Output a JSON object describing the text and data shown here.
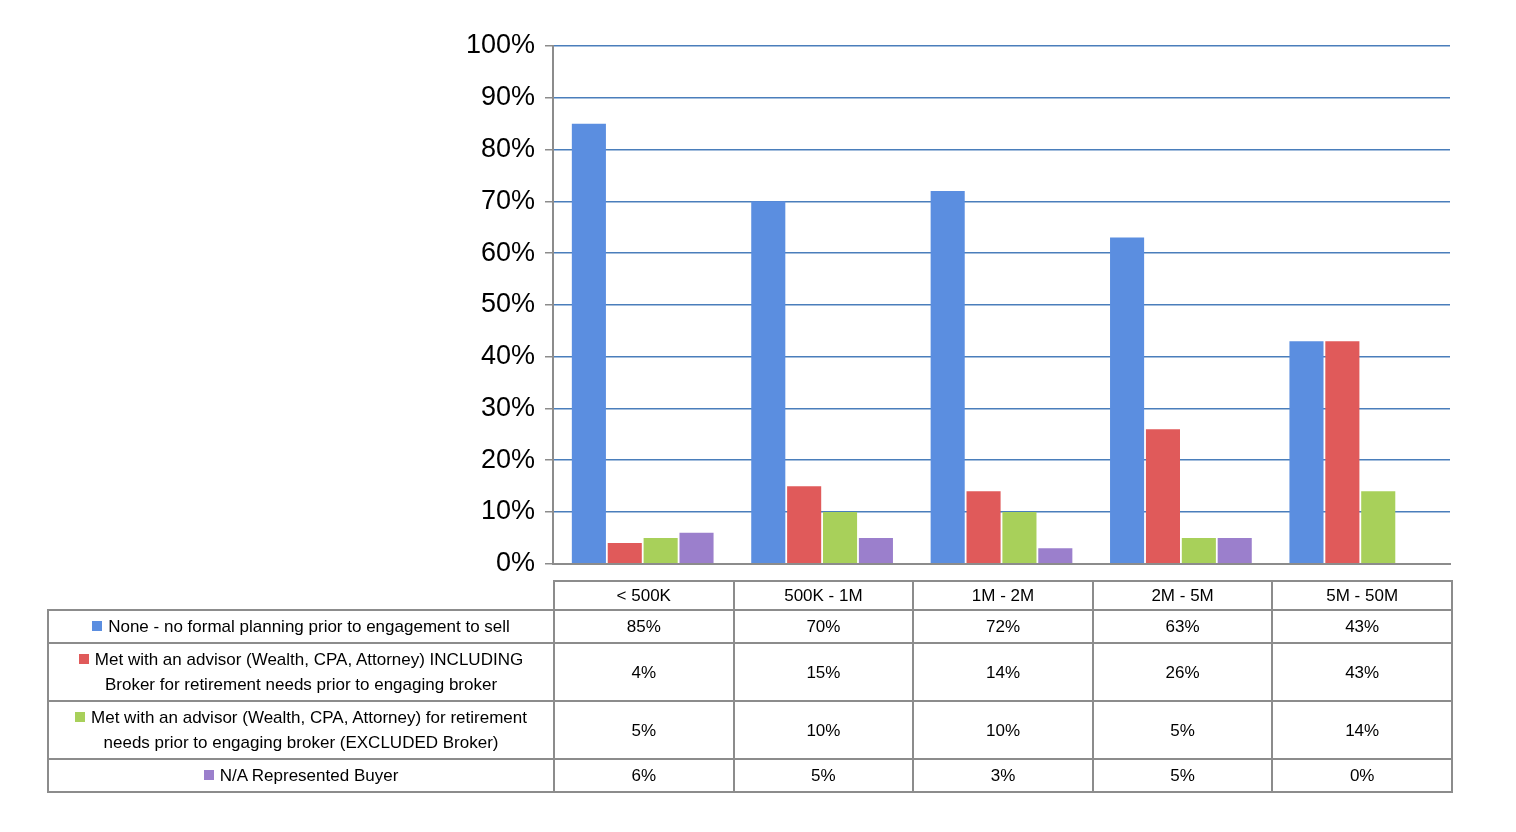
{
  "chart_data": {
    "type": "bar",
    "categories": [
      "< 500K",
      "500K - 1M",
      "1M - 2M",
      "2M - 5M",
      "5M - 50M"
    ],
    "series": [
      {
        "name": "None - no formal planning prior to engagement to sell",
        "color": "#5b8ee0",
        "values": [
          85,
          70,
          72,
          63,
          43
        ],
        "value_labels": [
          "85%",
          "70%",
          "72%",
          "63%",
          "43%"
        ]
      },
      {
        "name": "Met with an advisor (Wealth, CPA, Attorney) INCLUDING Broker for retirement needs prior to engaging broker",
        "color": "#e05a5a",
        "values": [
          4,
          15,
          14,
          26,
          43
        ],
        "value_labels": [
          "4%",
          "15%",
          "14%",
          "26%",
          "43%"
        ]
      },
      {
        "name": "Met with an advisor (Wealth, CPA, Attorney) for retirement needs prior to engaging broker (EXCLUDED Broker)",
        "color": "#a8d05a",
        "values": [
          5,
          10,
          10,
          5,
          14
        ],
        "value_labels": [
          "5%",
          "10%",
          "10%",
          "5%",
          "14%"
        ]
      },
      {
        "name": "N/A  Represented Buyer",
        "color": "#9b7fcc",
        "values": [
          6,
          5,
          3,
          5,
          0
        ],
        "value_labels": [
          "6%",
          "5%",
          "3%",
          "5%",
          "0%"
        ]
      }
    ],
    "ylim": [
      0,
      100
    ],
    "yticks": [
      {
        "value": 0,
        "label": "0%"
      },
      {
        "value": 10,
        "label": "10%"
      },
      {
        "value": 20,
        "label": "20%"
      },
      {
        "value": 30,
        "label": "30%"
      },
      {
        "value": 40,
        "label": "40%"
      },
      {
        "value": 50,
        "label": "50%"
      },
      {
        "value": 60,
        "label": "60%"
      },
      {
        "value": 70,
        "label": "70%"
      },
      {
        "value": 80,
        "label": "80%"
      },
      {
        "value": 90,
        "label": "90%"
      },
      {
        "value": 100,
        "label": "100%"
      }
    ],
    "grid": "y",
    "legend": "bottom"
  }
}
